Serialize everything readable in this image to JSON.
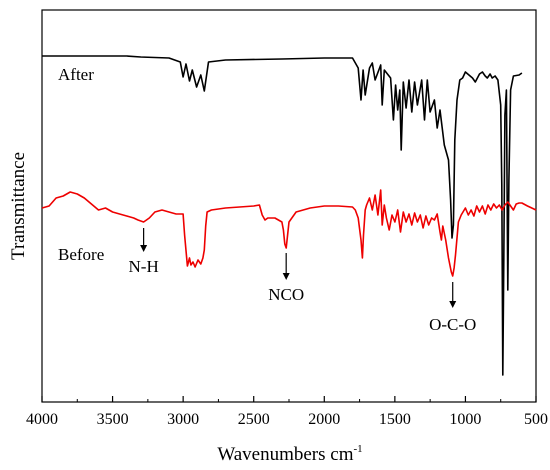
{
  "chart_data": {
    "type": "line",
    "title": "",
    "xlabel": "Wavenumbers cm",
    "xlabel_superscript": "-1",
    "ylabel": "Transmittance",
    "xlim": [
      4000,
      500
    ],
    "x_reversed": true,
    "x_ticks": [
      4000,
      3500,
      3000,
      2500,
      2000,
      1500,
      1000,
      500
    ],
    "y_ticks_shown": false,
    "grid": false,
    "legend": "none",
    "series": [
      {
        "name": "After",
        "color": "#000000",
        "points": [
          [
            4000,
            56
          ],
          [
            3600,
            56
          ],
          [
            3400,
            56
          ],
          [
            3300,
            57
          ],
          [
            3100,
            58
          ],
          [
            3020,
            62
          ],
          [
            3000,
            77
          ],
          [
            2980,
            64
          ],
          [
            2955,
            81
          ],
          [
            2935,
            70
          ],
          [
            2905,
            87
          ],
          [
            2875,
            75
          ],
          [
            2850,
            91
          ],
          [
            2820,
            62
          ],
          [
            2700,
            60
          ],
          [
            2300,
            59
          ],
          [
            2000,
            58
          ],
          [
            1800,
            58
          ],
          [
            1760,
            68
          ],
          [
            1740,
            100
          ],
          [
            1725,
            70
          ],
          [
            1710,
            95
          ],
          [
            1680,
            68
          ],
          [
            1660,
            63
          ],
          [
            1640,
            80
          ],
          [
            1600,
            65
          ],
          [
            1590,
            105
          ],
          [
            1575,
            70
          ],
          [
            1530,
            78
          ],
          [
            1510,
            120
          ],
          [
            1495,
            85
          ],
          [
            1480,
            110
          ],
          [
            1465,
            90
          ],
          [
            1455,
            150
          ],
          [
            1440,
            82
          ],
          [
            1420,
            108
          ],
          [
            1400,
            80
          ],
          [
            1380,
            112
          ],
          [
            1360,
            82
          ],
          [
            1340,
            105
          ],
          [
            1310,
            80
          ],
          [
            1290,
            120
          ],
          [
            1270,
            80
          ],
          [
            1250,
            112
          ],
          [
            1220,
            100
          ],
          [
            1200,
            128
          ],
          [
            1180,
            110
          ],
          [
            1150,
            145
          ],
          [
            1120,
            160
          ],
          [
            1105,
            200
          ],
          [
            1095,
            238
          ],
          [
            1085,
            225
          ],
          [
            1075,
            140
          ],
          [
            1060,
            100
          ],
          [
            1040,
            80
          ],
          [
            1020,
            78
          ],
          [
            1000,
            72
          ],
          [
            950,
            78
          ],
          [
            930,
            82
          ],
          [
            900,
            74
          ],
          [
            880,
            72
          ],
          [
            860,
            76
          ],
          [
            845,
            78
          ],
          [
            825,
            74
          ],
          [
            810,
            78
          ],
          [
            790,
            76
          ],
          [
            770,
            80
          ],
          [
            750,
            105
          ],
          [
            742,
            185
          ],
          [
            735,
            375
          ],
          [
            728,
            260
          ],
          [
            720,
            115
          ],
          [
            710,
            90
          ],
          [
            700,
            290
          ],
          [
            692,
            180
          ],
          [
            680,
            90
          ],
          [
            660,
            76
          ],
          [
            620,
            75
          ],
          [
            600,
            73
          ]
        ]
      },
      {
        "name": "Before",
        "color": "#ee0000",
        "points": [
          [
            4000,
            208
          ],
          [
            3950,
            206
          ],
          [
            3900,
            198
          ],
          [
            3850,
            196
          ],
          [
            3800,
            192
          ],
          [
            3750,
            194
          ],
          [
            3700,
            198
          ],
          [
            3650,
            204
          ],
          [
            3600,
            210
          ],
          [
            3550,
            208
          ],
          [
            3500,
            212
          ],
          [
            3450,
            214
          ],
          [
            3400,
            216
          ],
          [
            3350,
            218
          ],
          [
            3320,
            220
          ],
          [
            3280,
            222
          ],
          [
            3240,
            218
          ],
          [
            3200,
            212
          ],
          [
            3150,
            210
          ],
          [
            3100,
            212
          ],
          [
            3050,
            214
          ],
          [
            3000,
            214
          ],
          [
            2990,
            235
          ],
          [
            2970,
            266
          ],
          [
            2955,
            258
          ],
          [
            2945,
            265
          ],
          [
            2930,
            262
          ],
          [
            2915,
            267
          ],
          [
            2895,
            260
          ],
          [
            2875,
            264
          ],
          [
            2860,
            258
          ],
          [
            2850,
            250
          ],
          [
            2840,
            226
          ],
          [
            2830,
            212
          ],
          [
            2800,
            210
          ],
          [
            2700,
            208
          ],
          [
            2600,
            207
          ],
          [
            2500,
            206
          ],
          [
            2460,
            205
          ],
          [
            2440,
            215
          ],
          [
            2420,
            220
          ],
          [
            2400,
            218
          ],
          [
            2350,
            218
          ],
          [
            2300,
            222
          ],
          [
            2290,
            230
          ],
          [
            2280,
            244
          ],
          [
            2270,
            248
          ],
          [
            2260,
            235
          ],
          [
            2250,
            222
          ],
          [
            2200,
            212
          ],
          [
            2100,
            208
          ],
          [
            2000,
            206
          ],
          [
            1900,
            206
          ],
          [
            1800,
            207
          ],
          [
            1780,
            210
          ],
          [
            1760,
            218
          ],
          [
            1740,
            240
          ],
          [
            1730,
            258
          ],
          [
            1722,
            235
          ],
          [
            1710,
            210
          ],
          [
            1700,
            205
          ],
          [
            1680,
            198
          ],
          [
            1660,
            210
          ],
          [
            1640,
            195
          ],
          [
            1620,
            215
          ],
          [
            1600,
            190
          ],
          [
            1590,
            225
          ],
          [
            1575,
            205
          ],
          [
            1560,
            218
          ],
          [
            1540,
            230
          ],
          [
            1520,
            215
          ],
          [
            1500,
            222
          ],
          [
            1480,
            210
          ],
          [
            1460,
            232
          ],
          [
            1440,
            212
          ],
          [
            1420,
            222
          ],
          [
            1400,
            214
          ],
          [
            1380,
            225
          ],
          [
            1360,
            213
          ],
          [
            1340,
            222
          ],
          [
            1320,
            215
          ],
          [
            1300,
            228
          ],
          [
            1280,
            216
          ],
          [
            1260,
            225
          ],
          [
            1240,
            218
          ],
          [
            1220,
            220
          ],
          [
            1200,
            214
          ],
          [
            1180,
            232
          ],
          [
            1170,
            240
          ],
          [
            1160,
            226
          ],
          [
            1140,
            240
          ],
          [
            1120,
            258
          ],
          [
            1100,
            272
          ],
          [
            1090,
            276
          ],
          [
            1080,
            268
          ],
          [
            1070,
            255
          ],
          [
            1060,
            238
          ],
          [
            1050,
            222
          ],
          [
            1030,
            215
          ],
          [
            1000,
            208
          ],
          [
            980,
            215
          ],
          [
            960,
            210
          ],
          [
            940,
            216
          ],
          [
            920,
            206
          ],
          [
            900,
            212
          ],
          [
            880,
            206
          ],
          [
            860,
            214
          ],
          [
            840,
            205
          ],
          [
            820,
            210
          ],
          [
            800,
            204
          ],
          [
            780,
            208
          ],
          [
            760,
            205
          ],
          [
            740,
            210
          ],
          [
            720,
            205
          ],
          [
            700,
            202
          ],
          [
            680,
            206
          ],
          [
            660,
            210
          ],
          [
            640,
            204
          ],
          [
            620,
            203
          ],
          [
            600,
            203
          ],
          [
            560,
            206
          ],
          [
            530,
            208
          ],
          [
            500,
            210
          ]
        ]
      }
    ],
    "series_labels": [
      "After",
      "Before"
    ],
    "annotations": [
      {
        "text": "N-H",
        "x": 3280
      },
      {
        "text": "NCO",
        "x": 2270
      },
      {
        "text": "O-C-O",
        "x": 1090
      }
    ]
  }
}
